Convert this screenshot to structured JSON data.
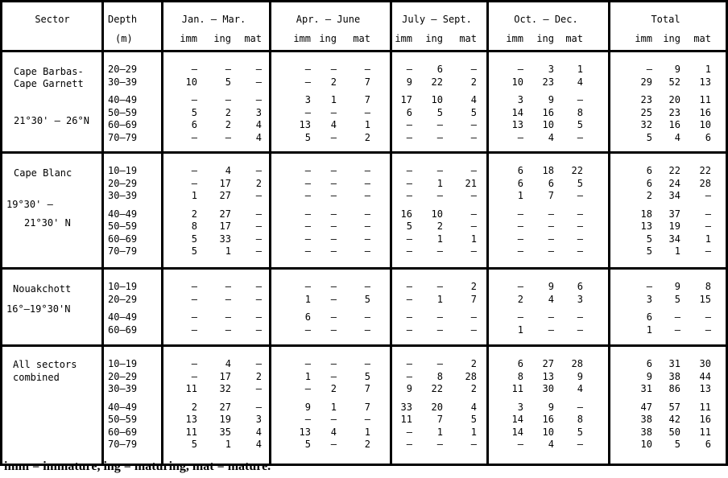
{
  "header": {
    "sector": "Sector",
    "depth": "Depth",
    "depth_unit": "(m)",
    "quarters": [
      "Jan. – Mar.",
      "Apr. – June",
      "July – Sept.",
      "Oct. – Dec.",
      "Total"
    ],
    "sub": [
      "imm",
      "ing",
      "mat"
    ]
  },
  "sections": [
    {
      "name_lines": [
        "Cape Barbas-",
        "Cape Garnett"
      ],
      "lat_lines": [
        "21°30' – 26°N"
      ],
      "rows": [
        {
          "depth": "20–29",
          "v": [
            [
              "-",
              "-",
              "-"
            ],
            [
              "-",
              "-",
              "-"
            ],
            [
              "-",
              "6",
              "-"
            ],
            [
              "-",
              "3",
              "1"
            ],
            [
              "-",
              "9",
              "1"
            ]
          ]
        },
        {
          "depth": "30–39",
          "v": [
            [
              "10",
              "5",
              "-"
            ],
            [
              "-",
              "2",
              "7"
            ],
            [
              "9",
              "22",
              "2"
            ],
            [
              "10",
              "23",
              "4"
            ],
            [
              "29",
              "52",
              "13"
            ]
          ]
        },
        {
          "depth": "40–49",
          "v": [
            [
              "-",
              "-",
              "-"
            ],
            [
              "3",
              "1",
              "7"
            ],
            [
              "17",
              "10",
              "4"
            ],
            [
              "3",
              "9",
              "-"
            ],
            [
              "23",
              "20",
              "11"
            ]
          ]
        },
        {
          "depth": "50–59",
          "v": [
            [
              "5",
              "2",
              "3"
            ],
            [
              "-",
              "-",
              "-"
            ],
            [
              "6",
              "5",
              "5"
            ],
            [
              "14",
              "16",
              "8"
            ],
            [
              "25",
              "23",
              "16"
            ]
          ]
        },
        {
          "depth": "60–69",
          "v": [
            [
              "6",
              "2",
              "4"
            ],
            [
              "13",
              "4",
              "1"
            ],
            [
              "-",
              "-",
              "-"
            ],
            [
              "13",
              "10",
              "5"
            ],
            [
              "32",
              "16",
              "10"
            ]
          ]
        },
        {
          "depth": "70–79",
          "v": [
            [
              "-",
              "-",
              "4"
            ],
            [
              "5",
              "-",
              "2"
            ],
            [
              "-",
              "-",
              "-"
            ],
            [
              "-",
              "4",
              "-"
            ],
            [
              "5",
              "4",
              "6"
            ]
          ]
        }
      ]
    },
    {
      "name_lines": [
        "Cape Blanc"
      ],
      "lat_lines": [
        "19°30' –",
        "21°30' N"
      ],
      "rows": [
        {
          "depth": "10–19",
          "v": [
            [
              "-",
              "4",
              "-"
            ],
            [
              "-",
              "-",
              "-"
            ],
            [
              "-",
              "-",
              "-"
            ],
            [
              "6",
              "18",
              "22"
            ],
            [
              "6",
              "22",
              "22"
            ]
          ]
        },
        {
          "depth": "20–29",
          "v": [
            [
              "-",
              "17",
              "2"
            ],
            [
              "-",
              "-",
              "-"
            ],
            [
              "-",
              "1",
              "21"
            ],
            [
              "6",
              "6",
              "5"
            ],
            [
              "6",
              "24",
              "28"
            ]
          ]
        },
        {
          "depth": "30–39",
          "v": [
            [
              "1",
              "27",
              "-"
            ],
            [
              "-",
              "-",
              "-"
            ],
            [
              "-",
              "-",
              "-"
            ],
            [
              "1",
              "7",
              "-"
            ],
            [
              "2",
              "34",
              "-"
            ]
          ]
        },
        {
          "depth": "40–49",
          "v": [
            [
              "2",
              "27",
              "-"
            ],
            [
              "-",
              "-",
              "-"
            ],
            [
              "16",
              "10",
              "-"
            ],
            [
              "-",
              "-",
              "-"
            ],
            [
              "18",
              "37",
              "-"
            ]
          ]
        },
        {
          "depth": "50–59",
          "v": [
            [
              "8",
              "17",
              "-"
            ],
            [
              "-",
              "-",
              "-"
            ],
            [
              "5",
              "2",
              "-"
            ],
            [
              "-",
              "-",
              "-"
            ],
            [
              "13",
              "19",
              "-"
            ]
          ]
        },
        {
          "depth": "60–69",
          "v": [
            [
              "5",
              "33",
              "-"
            ],
            [
              "-",
              "-",
              "-"
            ],
            [
              "-",
              "1",
              "1"
            ],
            [
              "-",
              "-",
              "-"
            ],
            [
              "5",
              "34",
              "1"
            ]
          ]
        },
        {
          "depth": "70–79",
          "v": [
            [
              "5",
              "1",
              "-"
            ],
            [
              "-",
              "-",
              "-"
            ],
            [
              "-",
              "-",
              "-"
            ],
            [
              "-",
              "-",
              "-"
            ],
            [
              "5",
              "1",
              "-"
            ]
          ]
        }
      ]
    },
    {
      "name_lines": [
        "Nouakchott"
      ],
      "lat_lines": [
        "16°–19°30'N"
      ],
      "rows": [
        {
          "depth": "10–19",
          "v": [
            [
              "-",
              "-",
              "-"
            ],
            [
              "-",
              "-",
              "-"
            ],
            [
              "-",
              "-",
              "2"
            ],
            [
              "-",
              "9",
              "6"
            ],
            [
              "-",
              "9",
              "8"
            ]
          ]
        },
        {
          "depth": "20–29",
          "v": [
            [
              "-",
              "-",
              "-"
            ],
            [
              "1",
              "-",
              "5"
            ],
            [
              "-",
              "1",
              "7"
            ],
            [
              "2",
              "4",
              "3"
            ],
            [
              "3",
              "5",
              "15"
            ]
          ]
        },
        {
          "depth": "40–49",
          "v": [
            [
              "-",
              "-",
              "-"
            ],
            [
              "6",
              "-",
              "-"
            ],
            [
              "-",
              "-",
              "-"
            ],
            [
              "-",
              "-",
              "-"
            ],
            [
              "6",
              "-",
              "-"
            ]
          ]
        },
        {
          "depth": "60–69",
          "v": [
            [
              "-",
              "-",
              "-"
            ],
            [
              "-",
              "-",
              "-"
            ],
            [
              "-",
              "-",
              "-"
            ],
            [
              "1",
              "-",
              "-"
            ],
            [
              "1",
              "-",
              "-"
            ]
          ]
        }
      ]
    },
    {
      "name_lines": [
        "All sectors",
        "combined"
      ],
      "lat_lines": [],
      "rows": [
        {
          "depth": "10–19",
          "v": [
            [
              "-",
              "4",
              "-"
            ],
            [
              "-",
              "-",
              "-"
            ],
            [
              "-",
              "-",
              "2"
            ],
            [
              "6",
              "27",
              "28"
            ],
            [
              "6",
              "31",
              "30"
            ]
          ]
        },
        {
          "depth": "20–29",
          "v": [
            [
              "-",
              "17",
              "2"
            ],
            [
              "1",
              "-",
              "5"
            ],
            [
              "-",
              "8",
              "28"
            ],
            [
              "8",
              "13",
              "9"
            ],
            [
              "9",
              "38",
              "44"
            ]
          ]
        },
        {
          "depth": "30–39",
          "v": [
            [
              "11",
              "32",
              "-"
            ],
            [
              "-",
              "2",
              "7"
            ],
            [
              "9",
              "22",
              "2"
            ],
            [
              "11",
              "30",
              "4"
            ],
            [
              "31",
              "86",
              "13"
            ]
          ]
        },
        {
          "depth": "40–49",
          "v": [
            [
              "2",
              "27",
              "-"
            ],
            [
              "9",
              "1",
              "7"
            ],
            [
              "33",
              "20",
              "4"
            ],
            [
              "3",
              "9",
              "-"
            ],
            [
              "47",
              "57",
              "11"
            ]
          ]
        },
        {
          "depth": "50–59",
          "v": [
            [
              "13",
              "19",
              "3"
            ],
            [
              "-",
              "-",
              "-"
            ],
            [
              "11",
              "7",
              "5"
            ],
            [
              "14",
              "16",
              "8"
            ],
            [
              "38",
              "42",
              "16"
            ]
          ]
        },
        {
          "depth": "60–69",
          "v": [
            [
              "11",
              "35",
              "4"
            ],
            [
              "13",
              "4",
              "1"
            ],
            [
              "-",
              "1",
              "1"
            ],
            [
              "14",
              "10",
              "5"
            ],
            [
              "38",
              "50",
              "11"
            ]
          ]
        },
        {
          "depth": "70–79",
          "v": [
            [
              "5",
              "1",
              "4"
            ],
            [
              "5",
              "-",
              "2"
            ],
            [
              "-",
              "-",
              "-"
            ],
            [
              "-",
              "4",
              "-"
            ],
            [
              "10",
              "5",
              "6"
            ]
          ]
        }
      ]
    }
  ],
  "footer": "imm = immature, ing = maturing, mat = mature."
}
